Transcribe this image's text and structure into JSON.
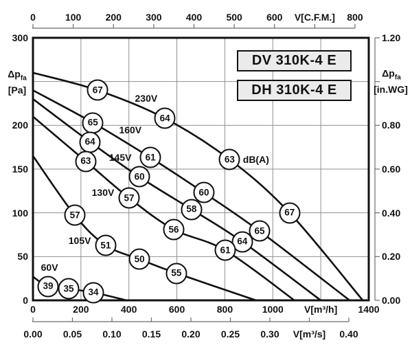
{
  "chart_data": {
    "type": "line",
    "title": "Fan performance curves (pressure vs. volume flow) with dB(A) sound ratings",
    "model_labels": [
      "DV 310K-4 E",
      "DH 310K-4 E"
    ],
    "axes": {
      "flow_m3h": {
        "label": "V[m³/h]",
        "min": 0,
        "max": 1400,
        "tick_values": [
          0,
          200,
          400,
          600,
          800,
          1000,
          1200,
          1400
        ],
        "tick_labels": [
          "0",
          "200",
          "400",
          "600",
          "800",
          "1000",
          "V[m³/h]",
          "1400"
        ]
      },
      "flow_cfm": {
        "label": "V[C.F.M.]",
        "min": 0,
        "max": 800,
        "tick_values": [
          0,
          100,
          200,
          300,
          400,
          500,
          600,
          700,
          800
        ],
        "tick_labels": [
          "0",
          "100",
          "200",
          "300",
          "400",
          "500",
          "600",
          "V[C.F.M.]",
          "800"
        ]
      },
      "flow_m3s": {
        "label": "V[m³/s]",
        "min": 0,
        "max": 0.4,
        "tick_values": [
          0,
          0.05,
          0.1,
          0.15,
          0.2,
          0.25,
          0.3,
          0.35,
          0.4
        ],
        "tick_labels": [
          "0.00",
          "0.05",
          "0.10",
          "0.15",
          "0.20",
          "0.25",
          "0.30",
          "V[m³/s]",
          "0.40"
        ]
      },
      "pressure_pa": {
        "min": 0,
        "max": 300,
        "tick_values": [
          0,
          50,
          100,
          150,
          200,
          300
        ],
        "tick_labels": [
          "0",
          "50",
          "100",
          "150",
          "200",
          "300"
        ],
        "title": {
          "sym": "Δp",
          "sub": "fa",
          "unit": "[Pa]"
        }
      },
      "pressure_inwg": {
        "min": 0,
        "max": 1.2,
        "tick_values": [
          0,
          0.2,
          0.4,
          0.6,
          0.8,
          1.2
        ],
        "tick_labels": [
          "0.00",
          "0.20",
          "0.40",
          "0.60",
          "0.80",
          "1.20"
        ],
        "tick_marks": [
          0,
          0.2,
          0.4,
          0.6,
          0.8,
          1.0,
          1.2
        ],
        "title": {
          "sym": "Δp",
          "sub": "fa",
          "unit": "[in.WG]"
        }
      }
    },
    "grid": {
      "x_values": [
        200,
        400,
        600,
        800,
        1000,
        1200
      ],
      "y_values": [
        50,
        100,
        150,
        200,
        250
      ]
    },
    "series": [
      {
        "name": "230V",
        "label_at": [
          472,
          231
        ],
        "points": [
          [
            0,
            260
          ],
          [
            270,
            240
          ],
          [
            550,
            208
          ],
          [
            820,
            161
          ],
          [
            1070,
            100
          ],
          [
            1375,
            0
          ]
        ],
        "db_circles": [
          {
            "flow": 270,
            "pa": 240,
            "db": "67"
          },
          {
            "flow": 550,
            "pa": 208,
            "db": "64"
          },
          {
            "flow": 820,
            "pa": 161,
            "db": "63"
          },
          {
            "flow": 1070,
            "pa": 100,
            "db": "67"
          }
        ]
      },
      {
        "name": "160V",
        "label_at": [
          406,
          195
        ],
        "points": [
          [
            0,
            240
          ],
          [
            250,
            203
          ],
          [
            490,
            163
          ],
          [
            713,
            123
          ],
          [
            945,
            79
          ],
          [
            1320,
            0
          ]
        ],
        "db_circles": [
          {
            "flow": 250,
            "pa": 203,
            "db": "65"
          },
          {
            "flow": 490,
            "pa": 163,
            "db": "61"
          },
          {
            "flow": 713,
            "pa": 123,
            "db": "60"
          },
          {
            "flow": 945,
            "pa": 79,
            "db": "65"
          }
        ]
      },
      {
        "name": "145V",
        "label_at": [
          364,
          163
        ],
        "points": [
          [
            0,
            230
          ],
          [
            238,
            181
          ],
          [
            444,
            141
          ],
          [
            661,
            104
          ],
          [
            873,
            67
          ],
          [
            1200,
            0
          ]
        ],
        "db_circles": [
          {
            "flow": 238,
            "pa": 181,
            "db": "64"
          },
          {
            "flow": 444,
            "pa": 141,
            "db": "60"
          },
          {
            "flow": 661,
            "pa": 104,
            "db": "58"
          },
          {
            "flow": 873,
            "pa": 67,
            "db": "64"
          }
        ]
      },
      {
        "name": "130V",
        "label_at": [
          292,
          123
        ],
        "points": [
          [
            0,
            210
          ],
          [
            220,
            159
          ],
          [
            401,
            117
          ],
          [
            587,
            81
          ],
          [
            802,
            57
          ],
          [
            1090,
            0
          ]
        ],
        "db_circles": [
          {
            "flow": 220,
            "pa": 159,
            "db": "63"
          },
          {
            "flow": 401,
            "pa": 117,
            "db": "57"
          },
          {
            "flow": 587,
            "pa": 81,
            "db": "56"
          },
          {
            "flow": 802,
            "pa": 57,
            "db": "61"
          }
        ]
      },
      {
        "name": "105V",
        "label_at": [
          195,
          68
        ],
        "points": [
          [
            0,
            165
          ],
          [
            175,
            97
          ],
          [
            303,
            63
          ],
          [
            444,
            47
          ],
          [
            598,
            31
          ],
          [
            930,
            0
          ]
        ],
        "db_circles": [
          {
            "flow": 175,
            "pa": 97,
            "db": "57"
          },
          {
            "flow": 303,
            "pa": 63,
            "db": "51"
          },
          {
            "flow": 444,
            "pa": 47,
            "db": "50"
          },
          {
            "flow": 598,
            "pa": 31,
            "db": "55"
          }
        ]
      },
      {
        "name": "60V",
        "label_at": [
          69,
          38
        ],
        "points": [
          [
            0,
            27
          ],
          [
            63,
            16
          ],
          [
            149,
            13
          ],
          [
            252,
            9
          ],
          [
            390,
            0
          ]
        ],
        "db_circles": [
          {
            "flow": 63,
            "pa": 16,
            "db": "39"
          },
          {
            "flow": 149,
            "pa": 13,
            "db": "35"
          },
          {
            "flow": 252,
            "pa": 9,
            "db": "34"
          }
        ]
      }
    ],
    "annotations": [
      {
        "text": "dB(A)",
        "at": [
          930,
          161
        ]
      }
    ]
  }
}
